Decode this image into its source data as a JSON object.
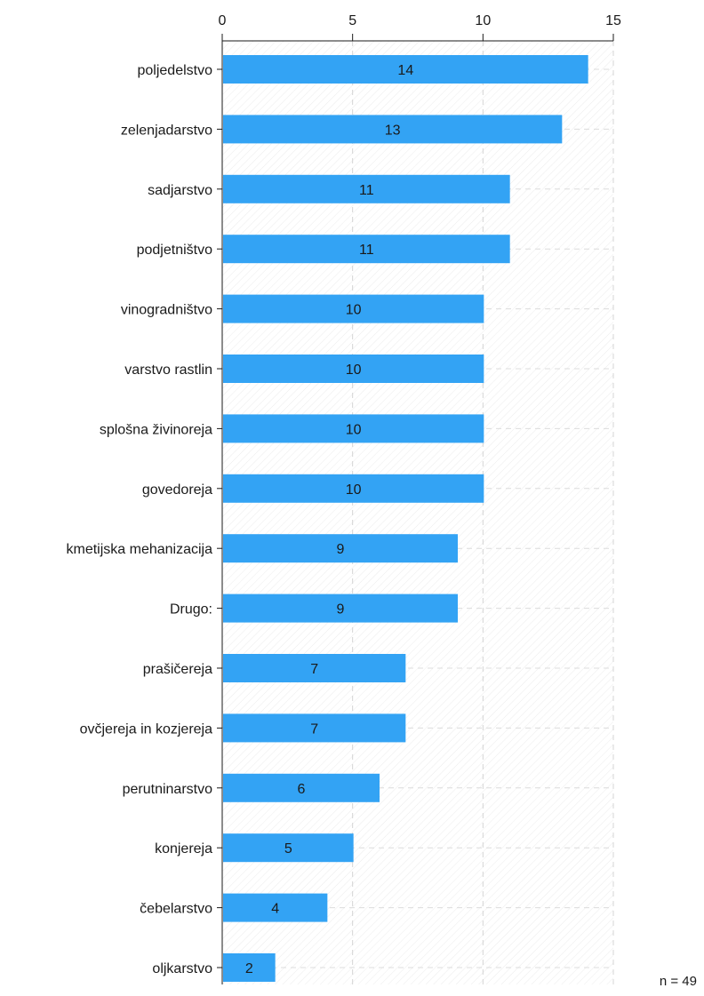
{
  "chart_data": {
    "type": "bar",
    "orientation": "horizontal",
    "categories": [
      "poljedelstvo",
      "zelenjadarstvo",
      "sadjarstvo",
      "podjetništvo",
      "vinogradništvo",
      "varstvo rastlin",
      "splošna živinoreja",
      "govedoreja",
      "kmetijska mehanizacija",
      "Drugo:",
      "prašičereja",
      "ovčjereja in kozjereja",
      "perutninarstvo",
      "konjereja",
      "čebelarstvo",
      "oljkarstvo"
    ],
    "values": [
      14,
      13,
      11,
      11,
      10,
      10,
      10,
      10,
      9,
      9,
      7,
      7,
      6,
      5,
      4,
      2
    ],
    "xlim": [
      0,
      15
    ],
    "xticks": [
      "0",
      "5",
      "10",
      "15"
    ],
    "x_axis_position": "top",
    "grid": true,
    "bar_color": "#33a3f4",
    "note": "n = 49"
  }
}
